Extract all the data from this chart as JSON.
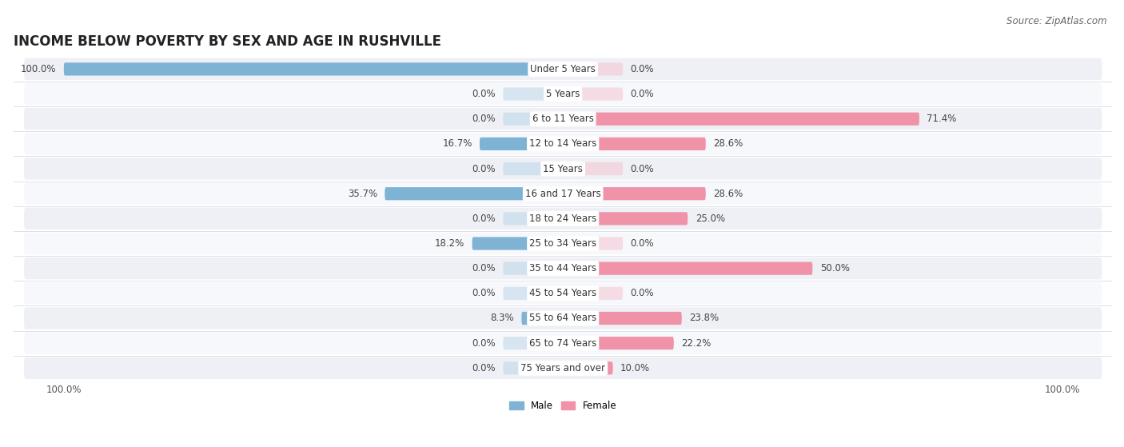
{
  "title": "INCOME BELOW POVERTY BY SEX AND AGE IN RUSHVILLE",
  "source": "Source: ZipAtlas.com",
  "categories": [
    "Under 5 Years",
    "5 Years",
    "6 to 11 Years",
    "12 to 14 Years",
    "15 Years",
    "16 and 17 Years",
    "18 to 24 Years",
    "25 to 34 Years",
    "35 to 44 Years",
    "45 to 54 Years",
    "55 to 64 Years",
    "65 to 74 Years",
    "75 Years and over"
  ],
  "male": [
    100.0,
    0.0,
    0.0,
    16.7,
    0.0,
    35.7,
    0.0,
    18.2,
    0.0,
    0.0,
    8.3,
    0.0,
    0.0
  ],
  "female": [
    0.0,
    0.0,
    71.4,
    28.6,
    0.0,
    28.6,
    25.0,
    0.0,
    50.0,
    0.0,
    23.8,
    22.2,
    10.0
  ],
  "male_color": "#7fb3d3",
  "female_color": "#f093a8",
  "male_color_light": "#b8d4e8",
  "female_color_light": "#f5c0cc",
  "male_label": "Male",
  "female_label": "Female",
  "background_row_light": "#eef0f5",
  "background_row_white": "#f7f8fc",
  "title_fontsize": 12,
  "label_fontsize": 8.5,
  "value_fontsize": 8.5,
  "tick_fontsize": 8.5,
  "source_fontsize": 8.5
}
